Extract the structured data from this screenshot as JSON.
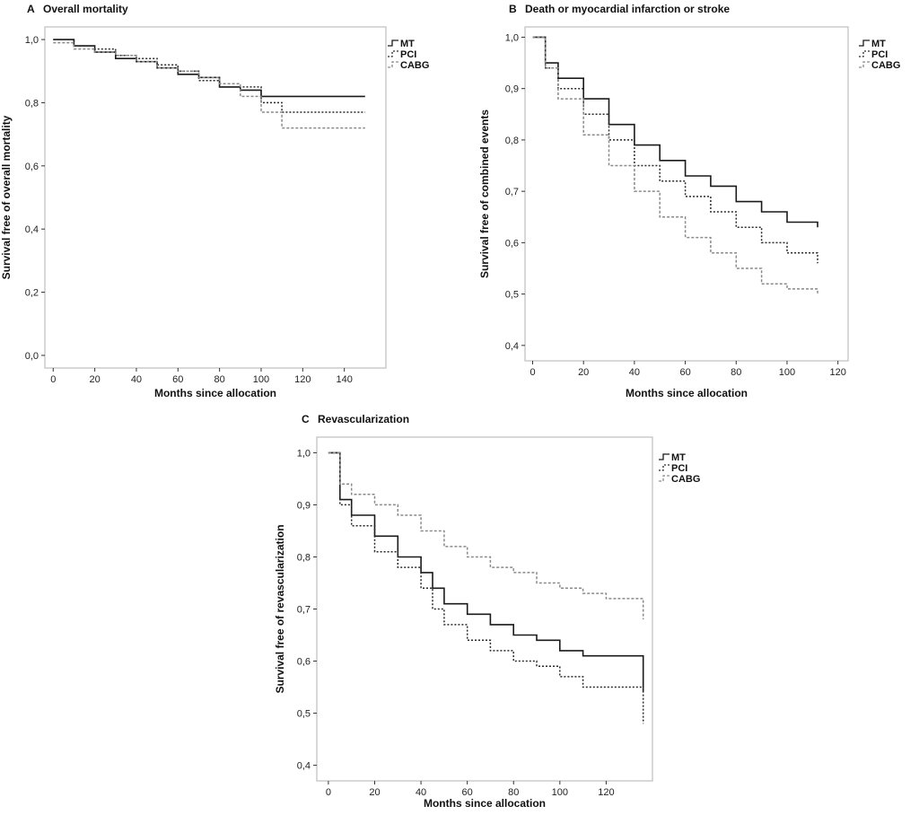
{
  "chart_data": [
    {
      "panel": "A",
      "type": "line",
      "title": "Overall mortality",
      "xlabel": "Months since allocation",
      "ylabel": "Survival free of overall mortality",
      "xticks": [
        0,
        20,
        40,
        60,
        80,
        100,
        120,
        140
      ],
      "yticks": [
        0.0,
        0.2,
        0.4,
        0.6,
        0.8,
        1.0
      ],
      "ytick_labels": [
        "0,0",
        "0,2",
        "0,4",
        "0,6",
        "0,8",
        "1,0"
      ],
      "xlim": [
        -4,
        160
      ],
      "ylim": [
        -0.04,
        1.04
      ],
      "legend": "outside top-right",
      "series": [
        {
          "name": "MT",
          "step": true,
          "x": [
            0,
            10,
            20,
            30,
            40,
            50,
            60,
            70,
            80,
            90,
            100,
            110,
            150
          ],
          "y": [
            1.0,
            0.98,
            0.96,
            0.94,
            0.93,
            0.91,
            0.89,
            0.88,
            0.85,
            0.84,
            0.82,
            0.82,
            0.82
          ]
        },
        {
          "name": "PCI",
          "step": true,
          "x": [
            0,
            10,
            20,
            30,
            40,
            50,
            60,
            70,
            80,
            90,
            100,
            110,
            150
          ],
          "y": [
            1.0,
            0.98,
            0.97,
            0.95,
            0.94,
            0.92,
            0.9,
            0.87,
            0.85,
            0.85,
            0.8,
            0.77,
            0.77
          ]
        },
        {
          "name": "CABG",
          "step": true,
          "x": [
            0,
            10,
            20,
            30,
            40,
            50,
            60,
            70,
            80,
            90,
            100,
            110,
            150
          ],
          "y": [
            0.99,
            0.97,
            0.96,
            0.95,
            0.93,
            0.91,
            0.9,
            0.88,
            0.86,
            0.82,
            0.77,
            0.72,
            0.72
          ]
        }
      ]
    },
    {
      "panel": "B",
      "type": "line",
      "title": "Death or myocardial infarction or stroke",
      "xlabel": "Months since allocation",
      "ylabel": "Survival free of combined events",
      "xticks": [
        0,
        20,
        40,
        60,
        80,
        100,
        120
      ],
      "yticks": [
        0.4,
        0.5,
        0.6,
        0.7,
        0.8,
        0.9,
        1.0
      ],
      "ytick_labels": [
        "0,4",
        "0,5",
        "0,6",
        "0,7",
        "0,8",
        "0,9",
        "1,0"
      ],
      "xlim": [
        -3,
        124
      ],
      "ylim": [
        0.37,
        1.02
      ],
      "legend": "outside top-right",
      "series": [
        {
          "name": "MT",
          "step": true,
          "x": [
            0,
            5,
            10,
            20,
            30,
            40,
            50,
            60,
            70,
            80,
            90,
            100,
            112
          ],
          "y": [
            1.0,
            0.95,
            0.92,
            0.88,
            0.83,
            0.79,
            0.76,
            0.73,
            0.71,
            0.68,
            0.66,
            0.64,
            0.63
          ]
        },
        {
          "name": "PCI",
          "step": true,
          "x": [
            0,
            5,
            10,
            20,
            30,
            40,
            50,
            60,
            70,
            80,
            90,
            100,
            112
          ],
          "y": [
            1.0,
            0.94,
            0.9,
            0.85,
            0.8,
            0.75,
            0.72,
            0.69,
            0.66,
            0.63,
            0.6,
            0.58,
            0.56
          ]
        },
        {
          "name": "CABG",
          "step": true,
          "x": [
            0,
            5,
            10,
            20,
            30,
            40,
            50,
            60,
            70,
            80,
            90,
            100,
            112
          ],
          "y": [
            1.0,
            0.94,
            0.88,
            0.81,
            0.75,
            0.7,
            0.65,
            0.61,
            0.58,
            0.55,
            0.52,
            0.51,
            0.5
          ]
        }
      ]
    },
    {
      "panel": "C",
      "type": "line",
      "title": "Revascularization",
      "xlabel": "Months since allocation",
      "ylabel": "Survival free of revascularization",
      "xticks": [
        0,
        20,
        40,
        60,
        80,
        100,
        120
      ],
      "yticks": [
        0.4,
        0.5,
        0.6,
        0.7,
        0.8,
        0.9,
        1.0
      ],
      "ytick_labels": [
        "0,4",
        "0,5",
        "0,6",
        "0,7",
        "0,8",
        "0,9",
        "1,0"
      ],
      "xlim": [
        -5,
        140
      ],
      "ylim": [
        0.37,
        1.03
      ],
      "legend": "outside top-right",
      "series": [
        {
          "name": "MT",
          "step": true,
          "x": [
            0,
            5,
            10,
            20,
            30,
            40,
            45,
            50,
            60,
            70,
            80,
            90,
            100,
            110,
            136
          ],
          "y": [
            1.0,
            0.91,
            0.88,
            0.84,
            0.8,
            0.77,
            0.74,
            0.71,
            0.69,
            0.67,
            0.65,
            0.64,
            0.62,
            0.61,
            0.54
          ]
        },
        {
          "name": "PCI",
          "step": true,
          "x": [
            0,
            5,
            10,
            20,
            30,
            40,
            45,
            50,
            60,
            70,
            80,
            90,
            100,
            110,
            136
          ],
          "y": [
            1.0,
            0.9,
            0.86,
            0.81,
            0.78,
            0.74,
            0.7,
            0.67,
            0.64,
            0.62,
            0.6,
            0.59,
            0.57,
            0.55,
            0.48
          ]
        },
        {
          "name": "CABG",
          "step": true,
          "x": [
            0,
            5,
            10,
            20,
            30,
            40,
            50,
            60,
            70,
            80,
            90,
            100,
            110,
            120,
            136
          ],
          "y": [
            1.0,
            0.94,
            0.92,
            0.9,
            0.88,
            0.85,
            0.82,
            0.8,
            0.78,
            0.77,
            0.75,
            0.74,
            0.73,
            0.72,
            0.68
          ]
        }
      ]
    }
  ]
}
